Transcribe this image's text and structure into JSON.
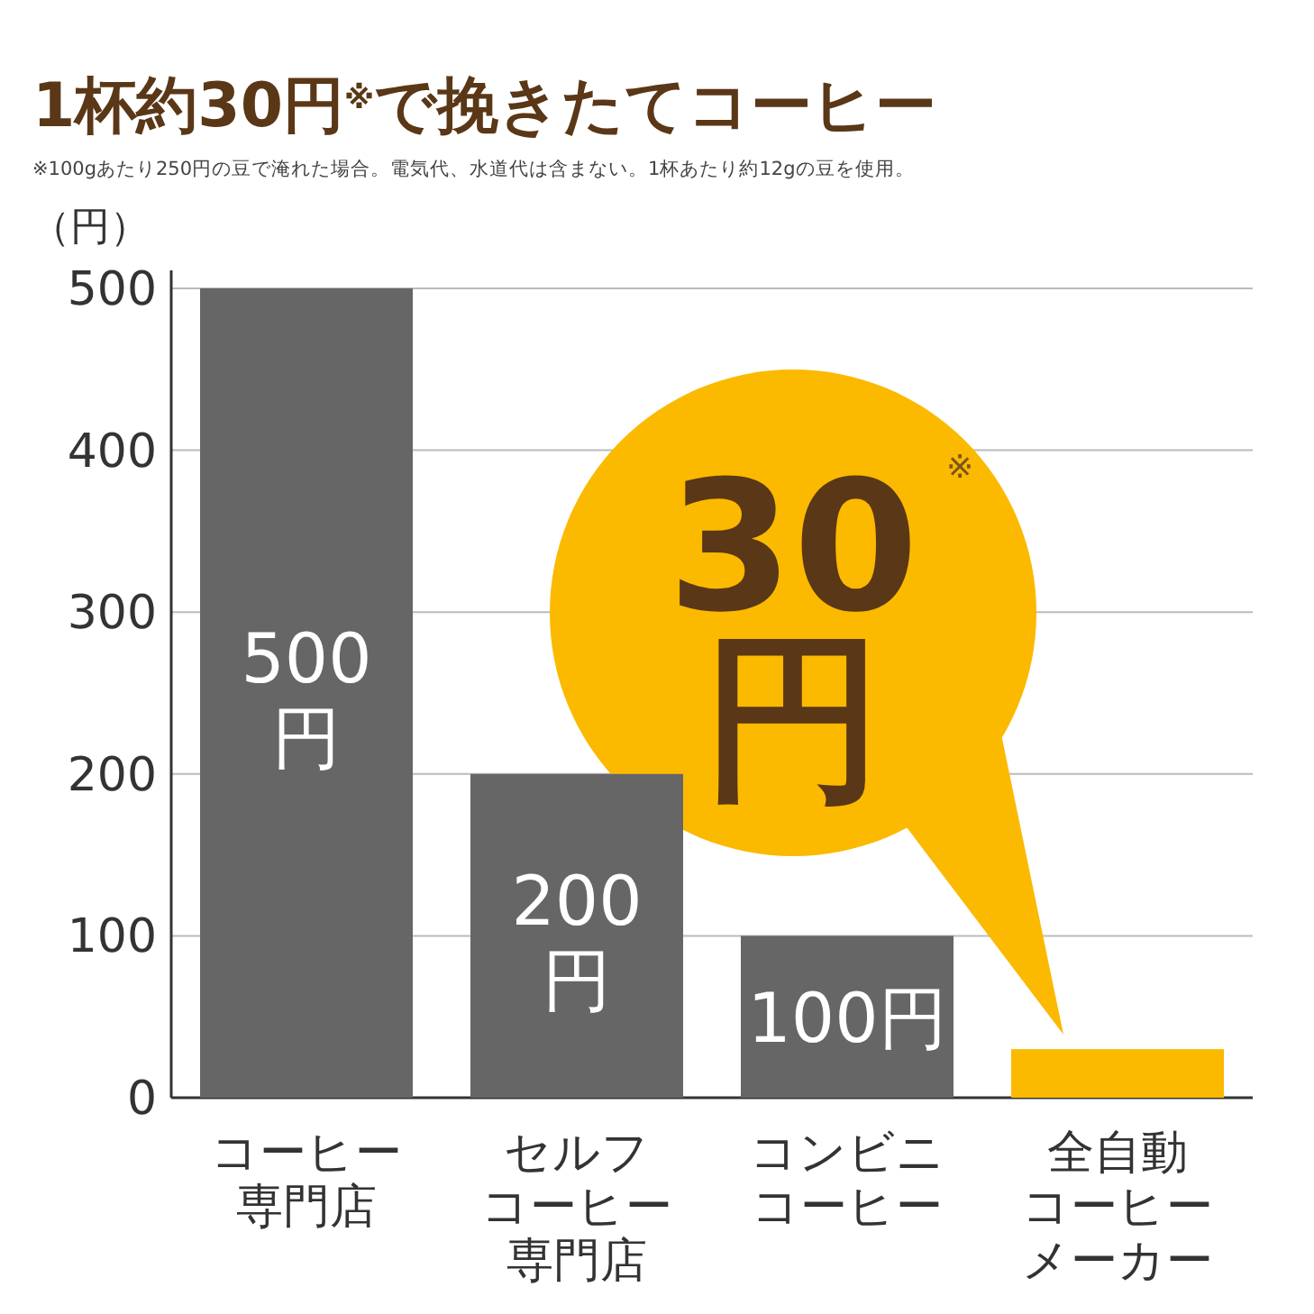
{
  "chart_data": {
    "type": "bar",
    "title": "1杯約30円$^{※}$で挽きたてコーヒー",
    "subtitle": "※100gあたり250円の豆で淹れた場合。電気代、水道代は含まない。1杯あたり約12gの豆を使用。",
    "ylabel": "（円）",
    "categories": [
      "コーヒー専門店",
      "セルフコーヒー専門店",
      "コンビニコーヒー",
      "全自動コーヒーメーカー"
    ],
    "values": [
      500,
      200,
      100,
      30
    ],
    "colors": [
      "#666666",
      "#666666",
      "#666666",
      "#fbb900"
    ],
    "value_labels": [
      "500\n円",
      "200\n円",
      "100円",
      null
    ],
    "annotations": [
      {
        "text": "30\n円",
        "x": "全自動コーヒーメーカー",
        "y": 30
      },
      "※"
    ],
    "ylim": [
      0,
      500
    ],
    "yticks": [
      0,
      100,
      200,
      300,
      400,
      500
    ],
    "grid": "y"
  }
}
